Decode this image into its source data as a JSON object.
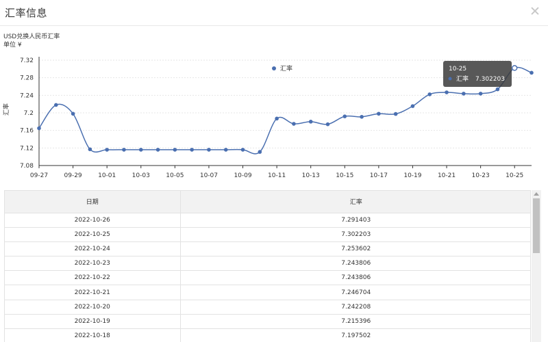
{
  "modal": {
    "title": "汇率信息"
  },
  "chart_data": {
    "type": "line",
    "subtitle": "USD兑换人民币汇率",
    "unit_label": "单位 ¥",
    "ylabel": "汇率",
    "ylim": [
      7.08,
      7.32
    ],
    "yticks": [
      "7.08",
      "7.12",
      "7.16",
      "7.2",
      "7.24",
      "7.28",
      "7.32"
    ],
    "grid": true,
    "legend_position": "top-center",
    "x": [
      "09-27",
      "09-28",
      "09-29",
      "09-30",
      "10-01",
      "10-02",
      "10-03",
      "10-04",
      "10-05",
      "10-06",
      "10-07",
      "10-08",
      "10-09",
      "10-10",
      "10-11",
      "10-12",
      "10-13",
      "10-14",
      "10-15",
      "10-16",
      "10-17",
      "10-18",
      "10-19",
      "10-20",
      "10-21",
      "10-22",
      "10-23",
      "10-24",
      "10-25",
      "10-26"
    ],
    "xtick_labels": [
      "09-27",
      "09-29",
      "10-01",
      "10-03",
      "10-05",
      "10-07",
      "10-09",
      "10-11",
      "10-13",
      "10-15",
      "10-17",
      "10-19",
      "10-21",
      "10-23",
      "10-25"
    ],
    "series": [
      {
        "name": "汇率",
        "color": "#4a6fb0",
        "values": [
          7.165,
          7.218,
          7.198,
          7.117,
          7.116,
          7.116,
          7.116,
          7.116,
          7.116,
          7.116,
          7.116,
          7.116,
          7.116,
          7.111,
          7.187,
          7.175,
          7.18,
          7.174,
          7.192,
          7.191,
          7.198,
          7.197502,
          7.215396,
          7.242208,
          7.246704,
          7.243806,
          7.243806,
          7.253602,
          7.302203,
          7.291403
        ]
      }
    ],
    "tooltip": {
      "date": "10-25",
      "label": "汇率",
      "value": "7.302203"
    }
  },
  "table": {
    "headers": [
      "日期",
      "汇率"
    ],
    "rows": [
      [
        "2022-10-26",
        "7.291403"
      ],
      [
        "2022-10-25",
        "7.302203"
      ],
      [
        "2022-10-24",
        "7.253602"
      ],
      [
        "2022-10-23",
        "7.243806"
      ],
      [
        "2022-10-22",
        "7.243806"
      ],
      [
        "2022-10-21",
        "7.246704"
      ],
      [
        "2022-10-20",
        "7.242208"
      ],
      [
        "2022-10-19",
        "7.215396"
      ],
      [
        "2022-10-18",
        "7.197502"
      ]
    ]
  }
}
